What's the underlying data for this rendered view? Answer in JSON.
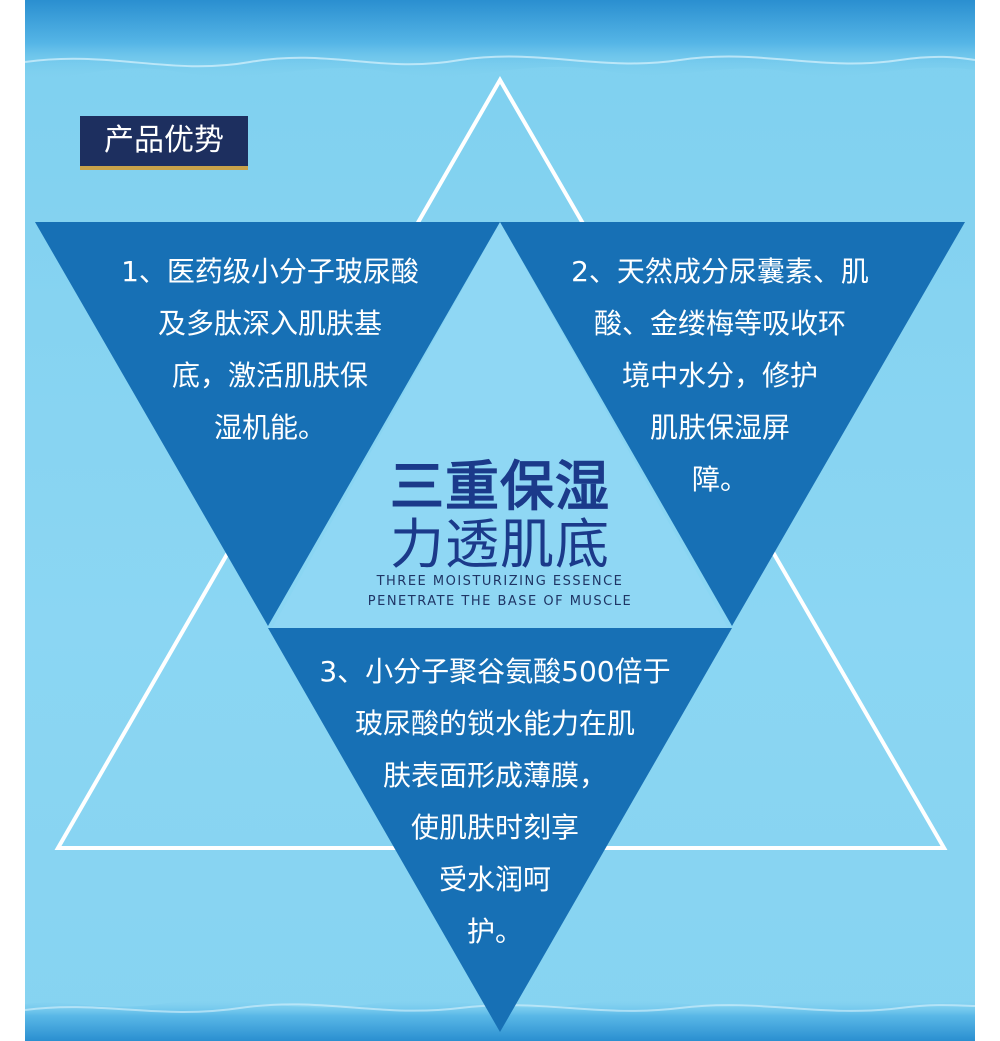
{
  "tag": {
    "label": "产品优势"
  },
  "points": {
    "p1": [
      "1、医药级小分子玻尿酸",
      "及多肽深入肌肤基",
      "底，激活肌肤保",
      "湿机能。"
    ],
    "p2": [
      "2、天然成分尿囊素、肌",
      "酸、金缕梅等吸收环",
      "境中水分，修护",
      "肌肤保湿屏",
      "障。"
    ],
    "p3": [
      "3、小分子聚谷氨酸500倍于",
      "玻尿酸的锁水能力在肌",
      "肤表面形成薄膜，",
      "使肌肤时刻享",
      "受水润呵",
      "护。"
    ]
  },
  "center": {
    "title_line1": "三重保湿",
    "title_line2": "力透肌底",
    "en_line1": "THREE MOISTURIZING ESSENCE",
    "en_line2": "PENETRATE THE BASE OF MUSCLE"
  },
  "colors": {
    "background": "#86d3f1",
    "triangle": "#1770b5",
    "tag_bg": "#1d2f5f",
    "tag_underline": "#c8a24a",
    "title": "#1b3a8a"
  }
}
